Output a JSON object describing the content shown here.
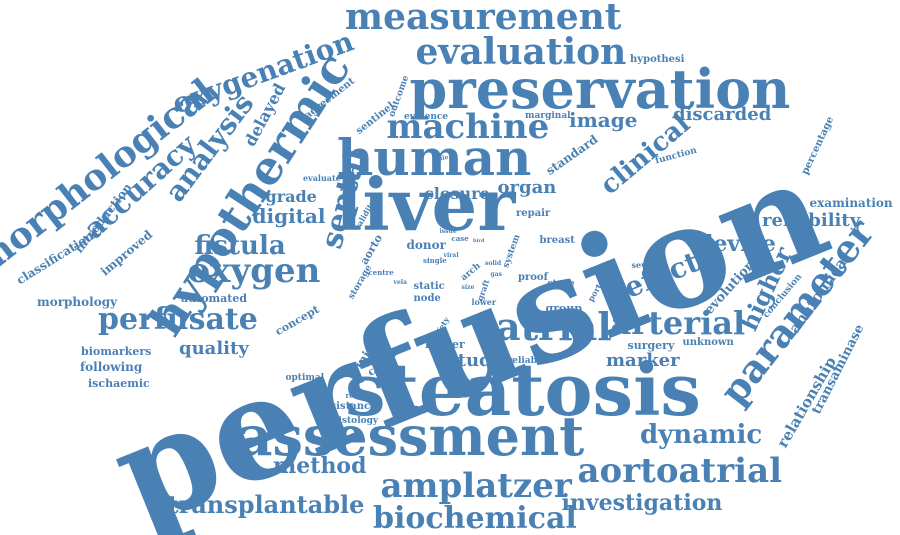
{
  "color": "#4a81b5",
  "words": [
    {
      "text": "perfusion",
      "slug": "perfusion"
    },
    {
      "text": "steatosis",
      "slug": "steatosis"
    },
    {
      "text": "assessment",
      "slug": "assessment"
    },
    {
      "text": "preservation",
      "slug": "preservation"
    },
    {
      "text": "liver",
      "slug": "liver"
    },
    {
      "text": "human",
      "slug": "human"
    },
    {
      "text": "measurement",
      "slug": "measurement"
    },
    {
      "text": "hypothermic",
      "slug": "hypothermic"
    },
    {
      "text": "machine",
      "slug": "machine"
    },
    {
      "text": "evaluation",
      "slug": "evaluation"
    },
    {
      "text": "amplatzer",
      "slug": "amplatzer"
    },
    {
      "text": "aortoatrial",
      "slug": "aortoatrial"
    },
    {
      "text": "biochemical",
      "slug": "biochemical"
    },
    {
      "text": "parameter",
      "slug": "parameter"
    },
    {
      "text": "morphological",
      "slug": "morphological"
    },
    {
      "text": "oxygenation",
      "slug": "oxygenation"
    },
    {
      "text": "atrial",
      "slug": "atrial"
    },
    {
      "text": "oxygen",
      "slug": "oxygen"
    },
    {
      "text": "perfusate",
      "slug": "perfusate"
    },
    {
      "text": "analysis",
      "slug": "analysis"
    },
    {
      "text": "accuracy",
      "slug": "accuracy"
    },
    {
      "text": "septal",
      "slug": "septal"
    },
    {
      "text": "fistula",
      "slug": "fistula"
    },
    {
      "text": "transplantable",
      "slug": "transplantable"
    },
    {
      "text": "arterial",
      "slug": "arterial"
    },
    {
      "text": "defect",
      "slug": "defect"
    },
    {
      "text": "dynamic",
      "slug": "dynamic"
    },
    {
      "text": "clinical",
      "slug": "clinical"
    },
    {
      "text": "investigation",
      "slug": "investigation"
    },
    {
      "text": "image",
      "slug": "image"
    },
    {
      "text": "device",
      "slug": "device"
    },
    {
      "text": "higher",
      "slug": "higher"
    },
    {
      "text": "digital",
      "slug": "digital"
    },
    {
      "text": "method",
      "slug": "method"
    },
    {
      "text": "quality",
      "slug": "quality"
    },
    {
      "text": "study",
      "slug": "study"
    },
    {
      "text": "marker",
      "slug": "marker"
    },
    {
      "text": "discarded",
      "slug": "discarded"
    },
    {
      "text": "reliability",
      "slug": "reliability"
    },
    {
      "text": "organ",
      "slug": "organ"
    },
    {
      "text": "closure",
      "slug": "closure"
    },
    {
      "text": "grade",
      "slug": "grade"
    },
    {
      "text": "delayed",
      "slug": "delayed"
    },
    {
      "text": "anatomical",
      "slug": "anatomical"
    },
    {
      "text": "relationship",
      "slug": "relationship"
    },
    {
      "text": "transaminase",
      "slug": "transaminase"
    },
    {
      "text": "evolution",
      "slug": "evolution"
    },
    {
      "text": "standard",
      "slug": "standard"
    },
    {
      "text": "improved",
      "slug": "improved"
    },
    {
      "text": "classification",
      "slug": "classification"
    },
    {
      "text": "introduction",
      "slug": "introduction"
    },
    {
      "text": "morphology",
      "slug": "morphology"
    },
    {
      "text": "biomarkers",
      "slug": "biomarkers"
    },
    {
      "text": "following",
      "slug": "following"
    },
    {
      "text": "ischaemic",
      "slug": "ischaemic"
    },
    {
      "text": "automated",
      "slug": "automated"
    },
    {
      "text": "concept",
      "slug": "concept"
    },
    {
      "text": "injury",
      "slug": "injury"
    },
    {
      "text": "cancer",
      "slug": "cancer"
    },
    {
      "text": "langer",
      "slug": "langer"
    },
    {
      "text": "surgery",
      "slug": "surgery"
    },
    {
      "text": "group",
      "slug": "group"
    },
    {
      "text": "unknown",
      "slug": "unknown"
    },
    {
      "text": "reliable",
      "slug": "reliable"
    },
    {
      "text": "optimal",
      "slug": "optimal"
    },
    {
      "text": "resistance",
      "slug": "resistance"
    },
    {
      "text": "histology",
      "slug": "histology"
    },
    {
      "text": "examination",
      "slug": "examination"
    },
    {
      "text": "percentage",
      "slug": "percentage"
    },
    {
      "text": "function",
      "slug": "function"
    },
    {
      "text": "hypothesi",
      "slug": "hypothesi"
    },
    {
      "text": "marginal",
      "slug": "marginal"
    },
    {
      "text": "evidence",
      "slug": "evidence"
    },
    {
      "text": "sentinel",
      "slug": "sentinel"
    },
    {
      "text": "agreement",
      "slug": "agreement"
    },
    {
      "text": "outcome",
      "slug": "outcome"
    },
    {
      "text": "evaluate",
      "slug": "evaluate"
    },
    {
      "text": "validity",
      "slug": "validity"
    },
    {
      "text": "aorto",
      "slug": "aorto"
    },
    {
      "text": "storage",
      "slug": "storage"
    },
    {
      "text": "donor",
      "slug": "donor"
    },
    {
      "text": "repair",
      "slug": "repair"
    },
    {
      "text": "breast",
      "slug": "breast"
    },
    {
      "text": "proof",
      "slug": "proof"
    },
    {
      "text": "stage",
      "slug": "stage"
    },
    {
      "text": "severity",
      "slug": "severity"
    },
    {
      "text": "conclusion",
      "slug": "conclusion"
    },
    {
      "text": "system",
      "slug": "system"
    },
    {
      "text": "static",
      "slug": "static"
    },
    {
      "text": "node",
      "slug": "node"
    },
    {
      "text": "centre",
      "slug": "centre"
    },
    {
      "text": "single",
      "slug": "single"
    },
    {
      "text": "arch",
      "slug": "arch"
    },
    {
      "text": "graft",
      "slug": "graft"
    },
    {
      "text": "safety",
      "slug": "safety"
    },
    {
      "text": "result",
      "slug": "result"
    },
    {
      "text": "portal",
      "slug": "portal"
    },
    {
      "text": "lower",
      "slug": "lower"
    },
    {
      "text": "case",
      "slug": "case"
    },
    {
      "text": "bile",
      "slug": "bile"
    },
    {
      "text": "vela",
      "slug": "vela"
    },
    {
      "text": "viral",
      "slug": "viral"
    },
    {
      "text": "issue",
      "slug": "issue"
    },
    {
      "text": "solid",
      "slug": "solid"
    },
    {
      "text": "bird",
      "slug": "bird"
    },
    {
      "text": "gas",
      "slug": "gas"
    },
    {
      "text": "size",
      "slug": "size"
    }
  ]
}
